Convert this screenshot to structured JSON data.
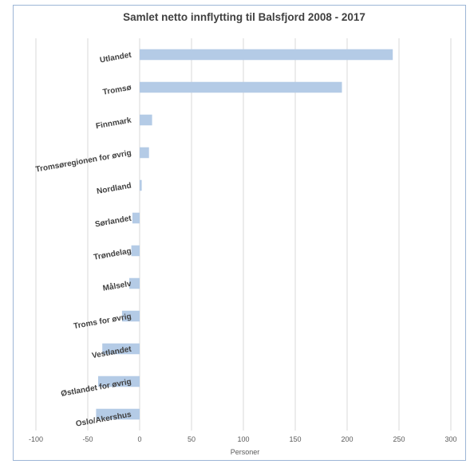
{
  "chart_data": {
    "type": "bar",
    "orientation": "horizontal",
    "title": "Samlet netto innflytting til Balsfjord 2008 - 2017",
    "xlabel": "Personer",
    "ylabel": "",
    "xlim": [
      -100,
      300
    ],
    "xticks": [
      -100,
      -50,
      0,
      50,
      100,
      150,
      200,
      250,
      300
    ],
    "grid": "vertical",
    "legend": "none",
    "categories": [
      "Utlandet",
      "Tromsø",
      "Finnmark",
      "Tromsøregionen for øvrig",
      "Nordland",
      "Sørlandet",
      "Trøndelag",
      "Målselv",
      "Troms for øvrig",
      "Vestlandet",
      "Østlandet for øvrig",
      "Oslo/Akershus"
    ],
    "values": [
      244,
      195,
      12,
      9,
      2,
      -7,
      -8,
      -10,
      -17,
      -36,
      -40,
      -42
    ],
    "bar_color": "#b4cbe6"
  }
}
